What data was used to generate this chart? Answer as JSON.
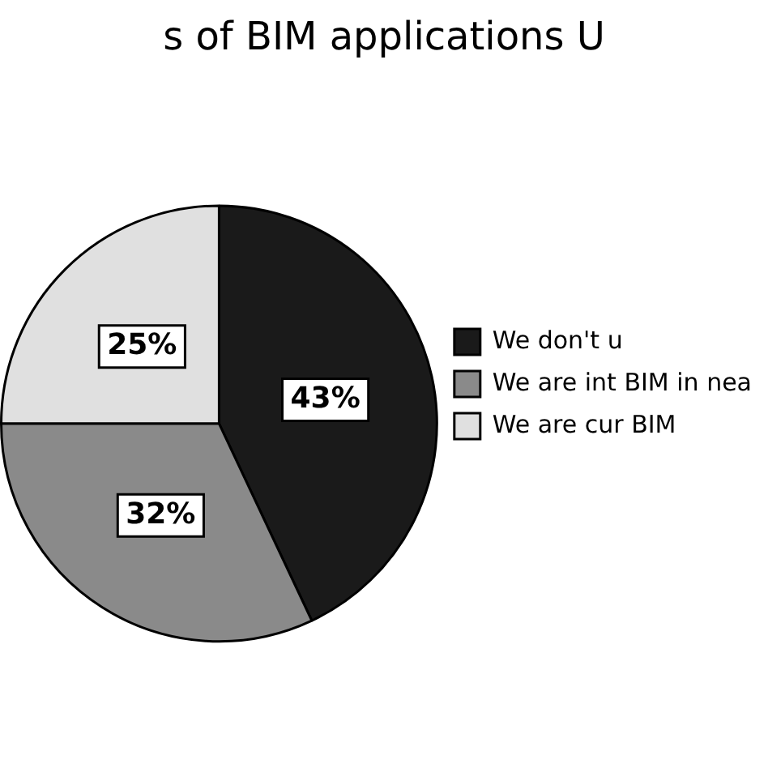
{
  "chart_data": {
    "type": "pie",
    "title": "s of BIM applications U",
    "categories": [
      "We don't u",
      "We are int BIM in nea",
      "We are cur BIM"
    ],
    "values": [
      43,
      32,
      25
    ],
    "colors": [
      "#1a1a1a",
      "#8a8a8a",
      "#e0e0e0"
    ],
    "value_labels": [
      "43%",
      "32%",
      "25%"
    ],
    "legend": "right"
  }
}
